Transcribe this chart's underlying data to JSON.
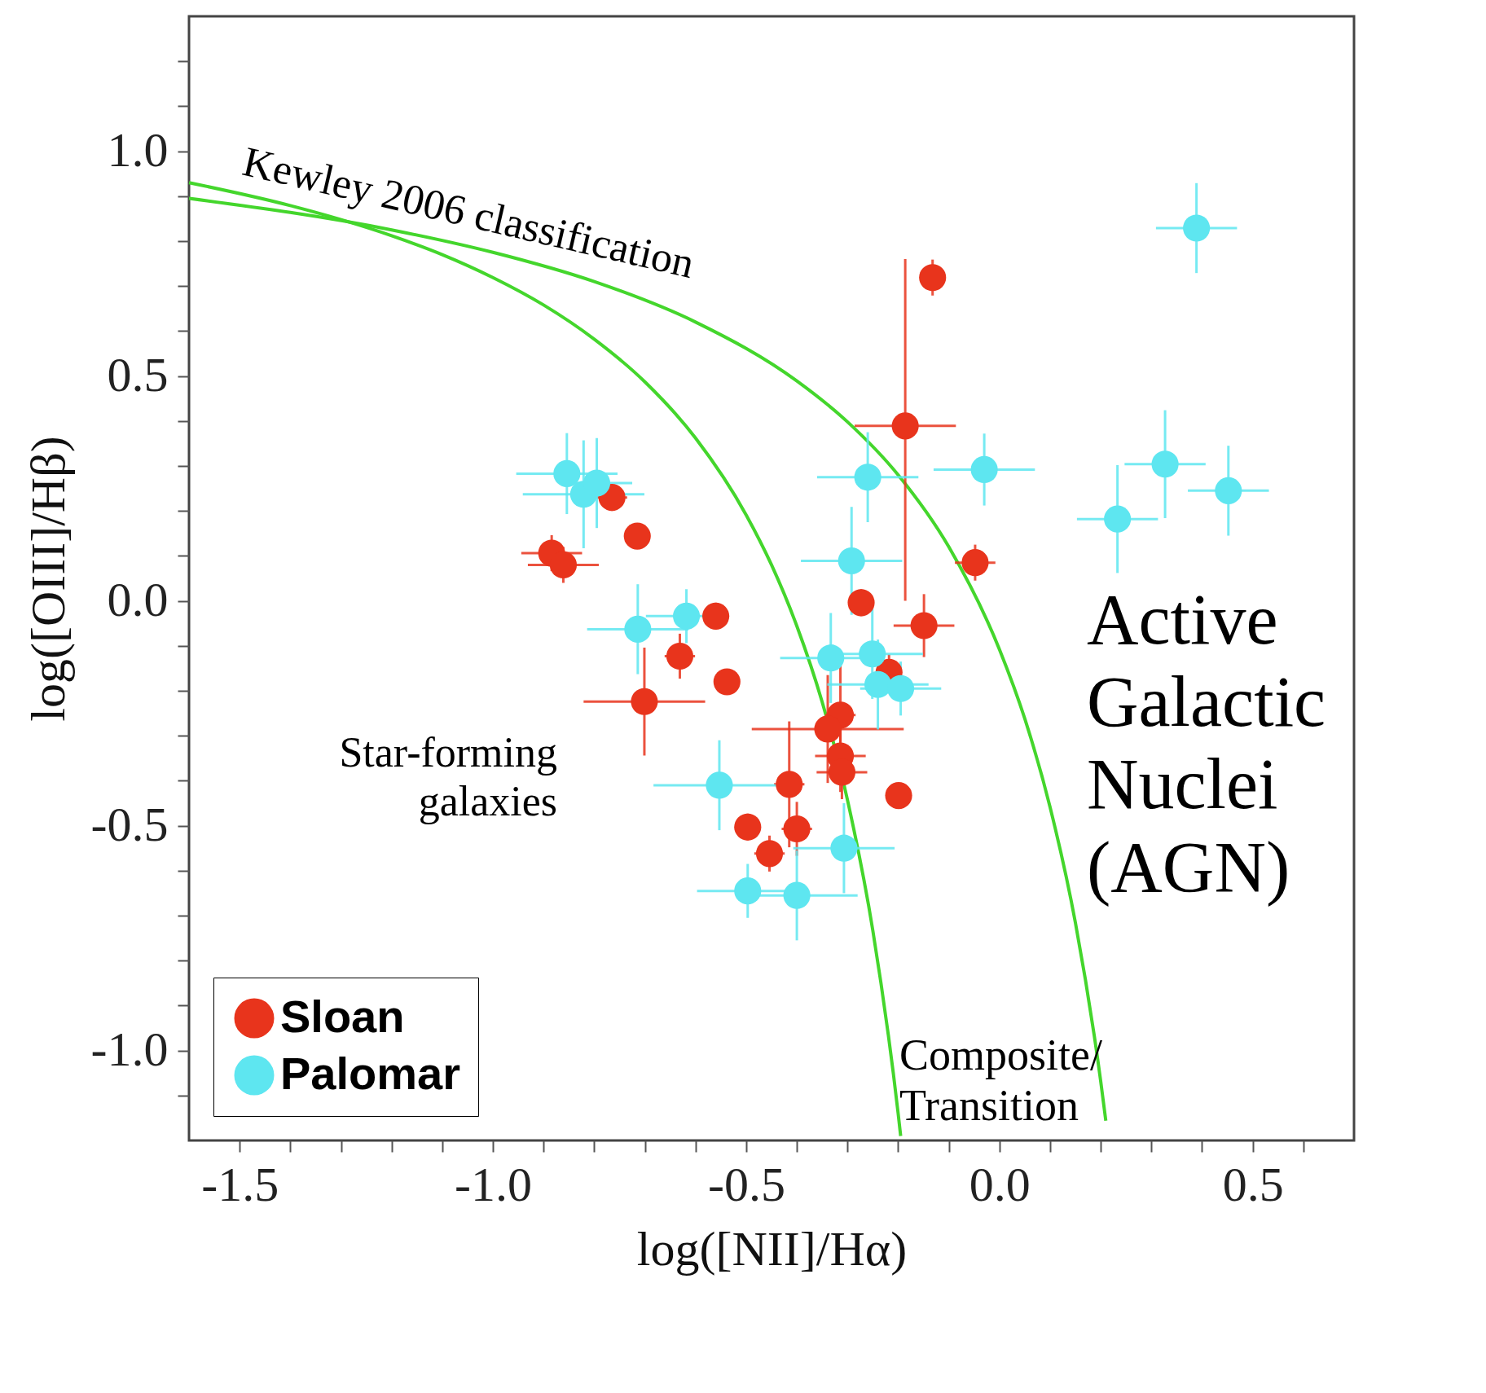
{
  "chart_data": {
    "type": "scatter",
    "xlabel": "log([NII]/Hα)",
    "ylabel": "log([OIII]/Hβ)",
    "xlim": [
      -1.6,
      0.7
    ],
    "ylim": [
      -1.2,
      1.3
    ],
    "xticks": [
      {
        "value": -1.5,
        "label": "-1.5"
      },
      {
        "value": -1.4,
        "label": null
      },
      {
        "value": -1.3,
        "label": null
      },
      {
        "value": -1.2,
        "label": null
      },
      {
        "value": -1.1,
        "label": null
      },
      {
        "value": -1.0,
        "label": "-1.0"
      },
      {
        "value": -0.9,
        "label": null
      },
      {
        "value": -0.8,
        "label": null
      },
      {
        "value": -0.7,
        "label": null
      },
      {
        "value": -0.6,
        "label": null
      },
      {
        "value": -0.5,
        "label": "-0.5"
      },
      {
        "value": -0.4,
        "label": null
      },
      {
        "value": -0.3,
        "label": null
      },
      {
        "value": -0.2,
        "label": null
      },
      {
        "value": -0.1,
        "label": null
      },
      {
        "value": 0,
        "label": "0.0"
      },
      {
        "value": 0.1,
        "label": null
      },
      {
        "value": 0.2,
        "label": null
      },
      {
        "value": 0.3,
        "label": null
      },
      {
        "value": 0.4,
        "label": null
      },
      {
        "value": 0.5,
        "label": "0.5"
      },
      {
        "value": 0.6,
        "label": null
      }
    ],
    "yticks": [
      {
        "value": -1.1,
        "label": null
      },
      {
        "value": -1.0,
        "label": "-1.0"
      },
      {
        "value": -0.9,
        "label": null
      },
      {
        "value": -0.8,
        "label": null
      },
      {
        "value": -0.7,
        "label": null
      },
      {
        "value": -0.6,
        "label": null
      },
      {
        "value": -0.5,
        "label": "-0.5"
      },
      {
        "value": -0.4,
        "label": null
      },
      {
        "value": -0.3,
        "label": null
      },
      {
        "value": -0.2,
        "label": null
      },
      {
        "value": -0.1,
        "label": null
      },
      {
        "value": 0,
        "label": "0.0"
      },
      {
        "value": 0.1,
        "label": null
      },
      {
        "value": 0.2,
        "label": null
      },
      {
        "value": 0.3,
        "label": null
      },
      {
        "value": 0.4,
        "label": null
      },
      {
        "value": 0.5,
        "label": "0.5"
      },
      {
        "value": 0.6,
        "label": null
      },
      {
        "value": 0.7,
        "label": null
      },
      {
        "value": 0.8,
        "label": null
      },
      {
        "value": 0.9,
        "label": null
      },
      {
        "value": 1.0,
        "label": "1.0"
      },
      {
        "value": 1.1,
        "label": null
      },
      {
        "value": 1.2,
        "label": null
      }
    ],
    "legend": "bottom left",
    "marker": "circle",
    "series": [
      {
        "type": "line",
        "marker": "none",
        "color": "#44d62c",
        "x": [
          -1.6,
          -1.4,
          -1.2,
          -1.1,
          -1.0,
          -0.9,
          -0.8,
          -0.7,
          -0.6,
          -0.5,
          -0.45,
          -0.4,
          -0.35,
          -0.3,
          -0.25,
          -0.2,
          -0.195
        ],
        "values": [
          0.93,
          0.879,
          0.812,
          0.77,
          0.719,
          0.658,
          0.582,
          0.487,
          0.362,
          0.191,
          0.08,
          -0.056,
          -0.225,
          -0.443,
          -0.733,
          -1.14,
          -1.19
        ]
      },
      {
        "type": "line",
        "marker": "none",
        "color": "#44d62c",
        "x": [
          -1.6,
          -1.2,
          -1.0,
          -0.8,
          -0.6,
          -0.4,
          -0.3,
          -0.2,
          -0.1,
          0.0,
          0.05,
          0.1,
          0.15,
          0.2,
          0.21
        ],
        "values": [
          0.895,
          0.825,
          0.775,
          0.71,
          0.62,
          0.489,
          0.398,
          0.28,
          0.12,
          -0.108,
          -0.262,
          -0.459,
          -0.716,
          -1.069,
          -1.156
        ]
      },
      {
        "name": "Sloan",
        "color": "#e8341c",
        "x": [
          -0.884,
          -0.861,
          -0.765,
          -0.715,
          -0.56,
          -0.538,
          -0.631,
          -0.701,
          -0.186,
          -0.132,
          -0.048,
          -0.149,
          -0.273,
          -0.314,
          -0.339,
          -0.314,
          -0.311,
          -0.199,
          -0.415,
          -0.4,
          -0.497,
          -0.454,
          -0.218
        ],
        "values": [
          0.106,
          0.08,
          0.23,
          0.144,
          -0.034,
          -0.18,
          -0.123,
          -0.224,
          0.389,
          0.719,
          0.085,
          -0.055,
          -0.004,
          -0.254,
          -0.285,
          -0.345,
          -0.381,
          -0.433,
          -0.408,
          -0.507,
          -0.503,
          -0.562,
          -0.159
        ],
        "xerrors": [
          0.06,
          0.07,
          0.03,
          0.02,
          0.02,
          0.02,
          0.03,
          0.12,
          0.1,
          0.02,
          0.04,
          0.06,
          0.02,
          0.03,
          0.15,
          0.05,
          0.05,
          0.02,
          0.03,
          0.03,
          0.02,
          0.03,
          0.02
        ],
        "errors": [
          0.04,
          0.04,
          0.03,
          0.02,
          0.03,
          0.02,
          0.05,
          0.12,
          [
            0.0,
            0.76
          ],
          0.04,
          0.04,
          0.07,
          0.03,
          0.12,
          0.12,
          0.08,
          0.06,
          0.02,
          0.14,
          0.06,
          0.03,
          0.04,
          0.04
        ]
      },
      {
        "name": "Palomar",
        "color": "#5ee6f0",
        "x": [
          -0.854,
          -0.821,
          -0.795,
          -0.714,
          -0.618,
          -0.553,
          -0.497,
          -0.4,
          -0.307,
          -0.333,
          -0.292,
          -0.26,
          -0.251,
          -0.24,
          -0.195,
          -0.03,
          0.233,
          0.327,
          0.452,
          0.389
        ],
        "values": [
          0.283,
          0.237,
          0.262,
          -0.063,
          -0.034,
          -0.41,
          -0.645,
          -0.655,
          -0.55,
          -0.127,
          0.089,
          0.275,
          -0.118,
          -0.186,
          -0.195,
          0.292,
          0.182,
          0.304,
          0.245,
          0.829
        ],
        "xerrors": [
          0.1,
          0.12,
          0.07,
          0.1,
          0.08,
          0.13,
          0.1,
          0.12,
          0.1,
          0.1,
          0.1,
          0.1,
          0.1,
          0.1,
          0.08,
          0.1,
          0.08,
          0.08,
          0.08,
          0.08
        ],
        "errors": [
          0.09,
          0.12,
          0.1,
          0.1,
          0.06,
          0.1,
          0.06,
          0.1,
          0.1,
          0.1,
          0.12,
          0.1,
          0.1,
          0.1,
          0.06,
          0.08,
          0.12,
          0.12,
          0.1,
          0.1
        ]
      }
    ],
    "annotations": [
      "Kewley 2006 classification",
      "Star-forming\ngalaxies",
      "Active\nGalactic\nNuclei\n(AGN)",
      "Composite/\nTransition"
    ]
  }
}
